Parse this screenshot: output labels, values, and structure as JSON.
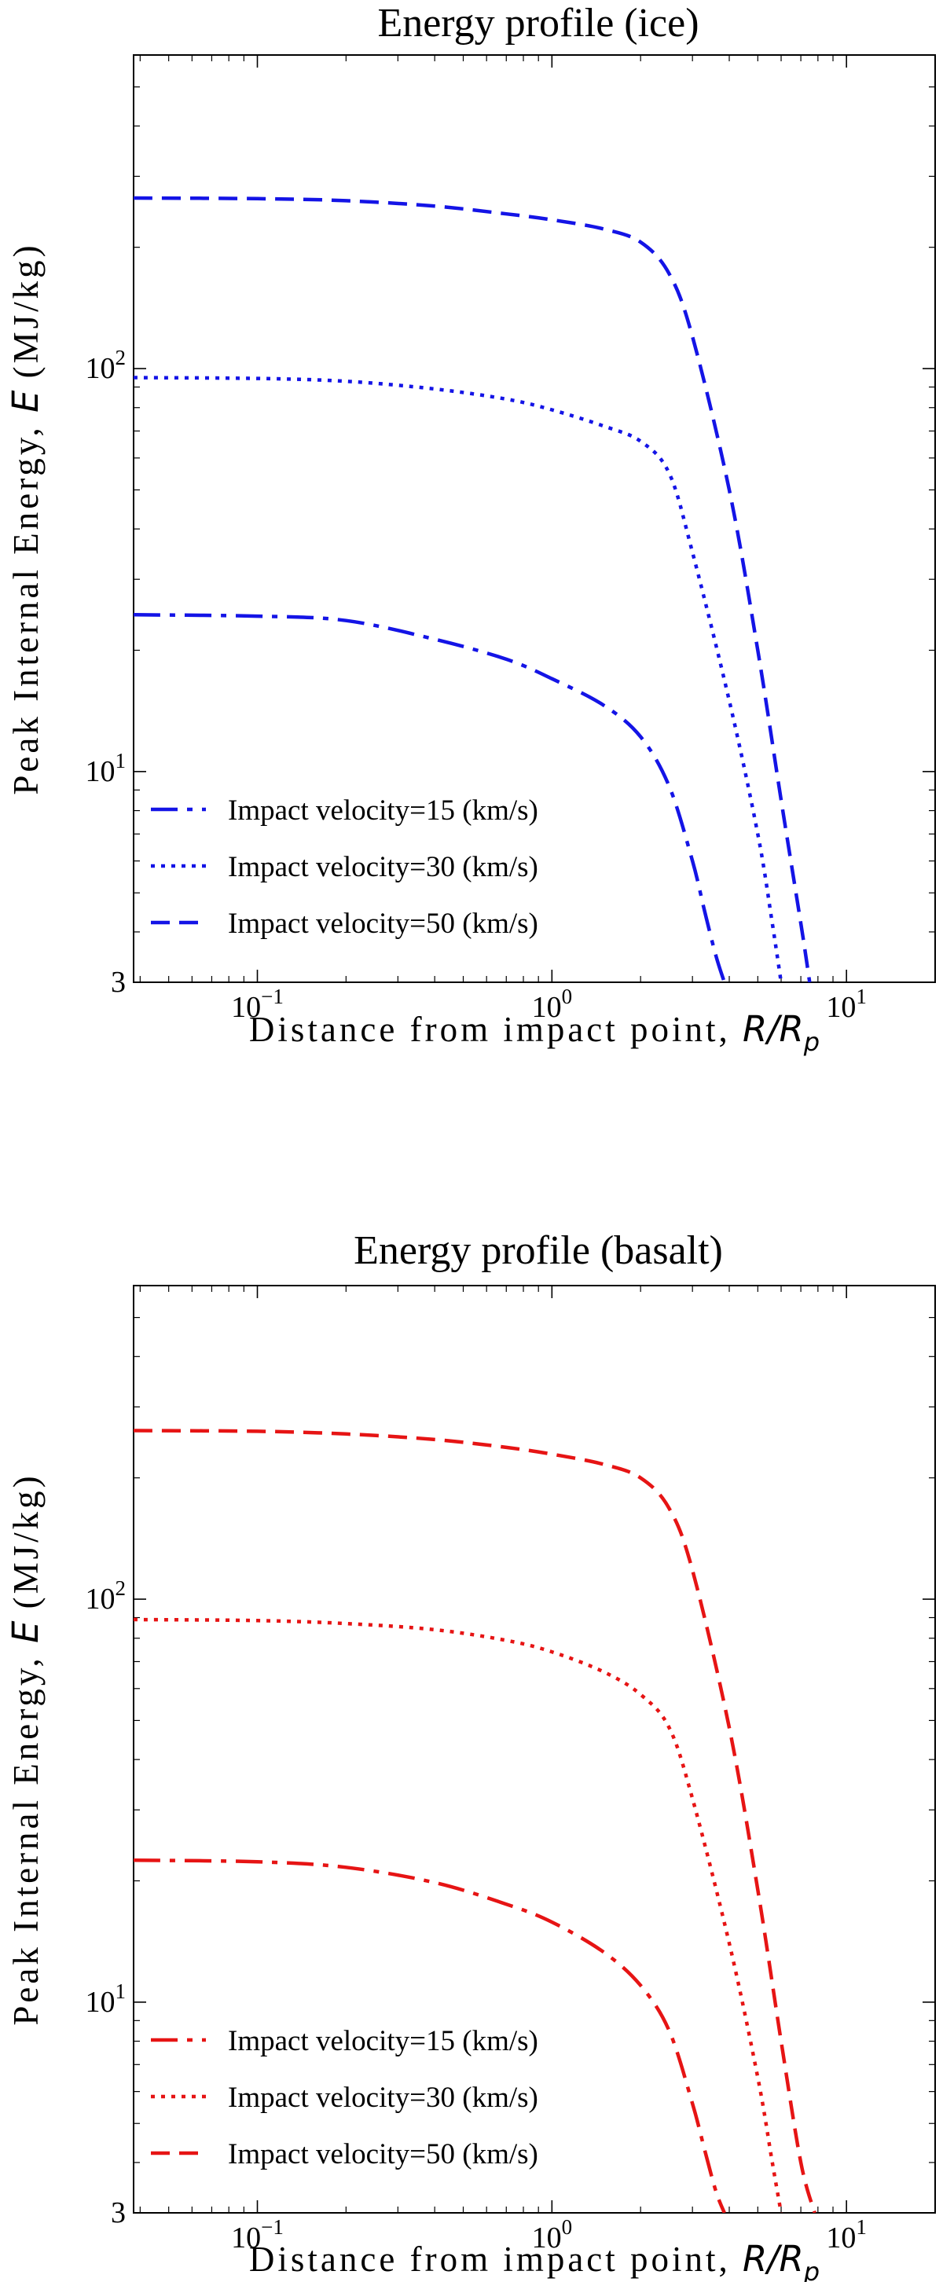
{
  "chart_data": [
    {
      "type": "line",
      "title": "Energy profile (ice)",
      "xlabel_text": "Distance from impact point, ",
      "xlabel_var": "R/R",
      "xlabel_sub": "p",
      "ylabel_text": "Peak Internal Energy, ",
      "ylabel_var": "E",
      "ylabel_unit": " (MJ/kg)",
      "xscale": "log",
      "yscale": "log",
      "xlim": [
        0.038,
        20
      ],
      "ylim": [
        3,
        600
      ],
      "grid": false,
      "legend_position": "bottom-left",
      "x_ticks": [
        {
          "value": 0.1,
          "base": "10",
          "exp": "−1"
        },
        {
          "value": 1,
          "base": "10",
          "exp": "0"
        },
        {
          "value": 10,
          "base": "10",
          "exp": "1"
        }
      ],
      "y_ticks": [
        {
          "value": 3,
          "base": "3",
          "exp": ""
        },
        {
          "value": 10,
          "base": "10",
          "exp": "1"
        },
        {
          "value": 100,
          "base": "10",
          "exp": "2"
        }
      ],
      "color": "#1414e6",
      "series": [
        {
          "name": "Impact velocity=15 (km/s)",
          "style": "dashdot",
          "x": [
            0.038,
            0.1,
            0.2,
            0.4,
            0.7,
            1.0,
            1.5,
            2.0,
            2.5,
            3.0,
            3.3,
            3.6,
            3.85
          ],
          "y": [
            24.5,
            24.3,
            23.7,
            21.3,
            19.0,
            17.0,
            14.6,
            12.2,
            9.2,
            6.0,
            4.5,
            3.5,
            3.0
          ]
        },
        {
          "name": "Impact velocity=30 (km/s)",
          "style": "dotted",
          "x": [
            0.038,
            0.1,
            0.2,
            0.4,
            0.7,
            1.0,
            1.5,
            2.0,
            2.5,
            3.0,
            4.0,
            5.0,
            5.6,
            6.0
          ],
          "y": [
            95,
            94.5,
            93,
            89,
            84,
            79,
            72,
            66,
            55,
            35,
            15,
            7,
            4.2,
            3.0
          ]
        },
        {
          "name": "Impact velocity=50 (km/s)",
          "style": "dashed",
          "x": [
            0.038,
            0.1,
            0.2,
            0.4,
            0.7,
            1.0,
            1.5,
            2.0,
            2.5,
            3.0,
            4.0,
            5.0,
            6.0,
            7.0,
            7.5
          ],
          "y": [
            265,
            264,
            261,
            253,
            242,
            234,
            222,
            206,
            172,
            120,
            50,
            20,
            8.5,
            4.2,
            3.0
          ]
        }
      ]
    },
    {
      "type": "line",
      "title": "Energy profile (basalt)",
      "xlabel_text": "Distance from impact point, ",
      "xlabel_var": "R/R",
      "xlabel_sub": "p",
      "ylabel_text": "Peak Internal Energy, ",
      "ylabel_var": "E",
      "ylabel_unit": " (MJ/kg)",
      "xscale": "log",
      "yscale": "log",
      "xlim": [
        0.038,
        20
      ],
      "ylim": [
        3,
        600
      ],
      "grid": false,
      "legend_position": "bottom-left",
      "x_ticks": [
        {
          "value": 0.1,
          "base": "10",
          "exp": "−1"
        },
        {
          "value": 1,
          "base": "10",
          "exp": "0"
        },
        {
          "value": 10,
          "base": "10",
          "exp": "1"
        }
      ],
      "y_ticks": [
        {
          "value": 3,
          "base": "3",
          "exp": ""
        },
        {
          "value": 10,
          "base": "10",
          "exp": "1"
        },
        {
          "value": 100,
          "base": "10",
          "exp": "2"
        }
      ],
      "color": "#e61414",
      "series": [
        {
          "name": "Impact velocity=15 (km/s)",
          "style": "dashdot",
          "x": [
            0.038,
            0.1,
            0.2,
            0.4,
            0.7,
            1.0,
            1.5,
            2.0,
            2.5,
            3.0,
            3.3,
            3.6,
            3.85
          ],
          "y": [
            22.5,
            22.3,
            21.6,
            19.8,
            17.5,
            15.8,
            13.3,
            11.0,
            8.5,
            5.6,
            4.3,
            3.4,
            3.0
          ]
        },
        {
          "name": "Impact velocity=30 (km/s)",
          "style": "dotted",
          "x": [
            0.038,
            0.1,
            0.2,
            0.4,
            0.7,
            1.0,
            1.5,
            2.0,
            2.5,
            3.0,
            4.0,
            5.0,
            5.6,
            6.0
          ],
          "y": [
            89,
            88.5,
            87,
            84,
            79,
            74,
            66,
            58,
            48,
            32,
            14,
            6.5,
            4.0,
            3.0
          ]
        },
        {
          "name": "Impact velocity=50 (km/s)",
          "style": "dashed",
          "x": [
            0.038,
            0.1,
            0.2,
            0.4,
            0.7,
            1.0,
            1.5,
            2.0,
            2.5,
            3.0,
            4.0,
            5.0,
            6.0,
            7.0,
            7.8
          ],
          "y": [
            262,
            261,
            257,
            249,
            238,
            229,
            216,
            200,
            168,
            118,
            48,
            19,
            8,
            4.0,
            3.0
          ]
        }
      ]
    }
  ]
}
